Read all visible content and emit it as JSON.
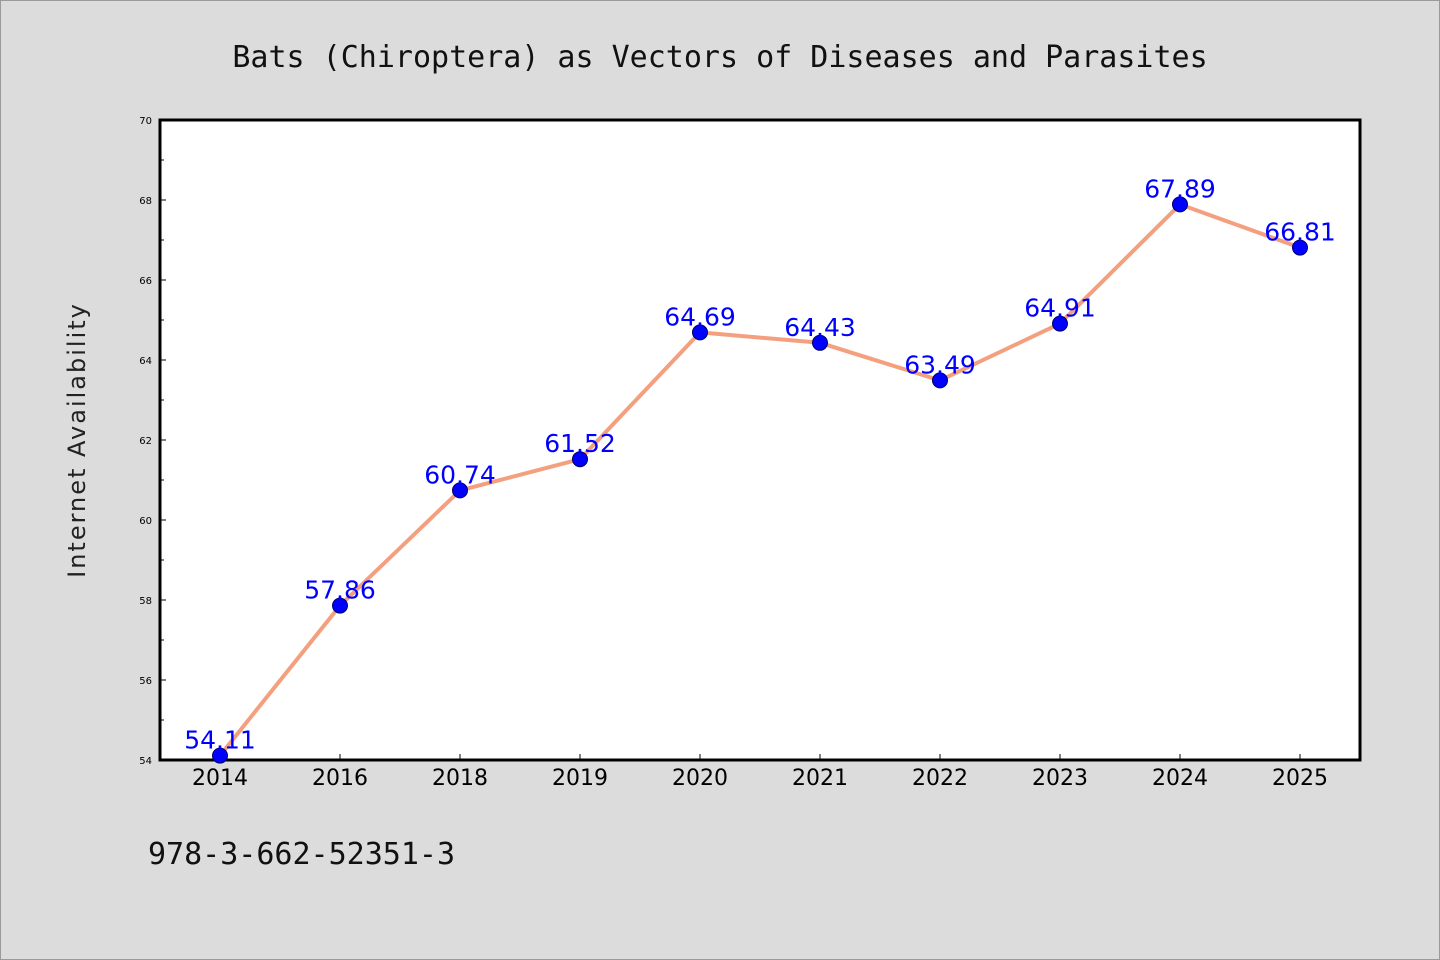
{
  "footer_text": "978-3-662-52351-3",
  "chart_data": {
    "type": "line",
    "title": "Bats (Chiroptera) as Vectors of Diseases and Parasites",
    "xlabel": "",
    "ylabel": "Internet Availability",
    "categories": [
      "2014",
      "2016",
      "2018",
      "2019",
      "2020",
      "2021",
      "2022",
      "2023",
      "2024",
      "2025"
    ],
    "series": [
      {
        "values": [
          54.11,
          57.86,
          60.74,
          61.52,
          64.69,
          64.43,
          63.49,
          64.91,
          67.89,
          66.81
        ],
        "labels": [
          "54.11",
          "57.86",
          "60.74",
          "61.52",
          "64.69",
          "64.43",
          "63.49",
          "64.91",
          "67.89",
          "66.81"
        ]
      }
    ],
    "ylim": [
      54,
      70
    ],
    "yticks": [
      "54",
      "56",
      "58",
      "60",
      "62",
      "64",
      "66",
      "68",
      "70"
    ],
    "grid": false,
    "line_color": "#f4a07f",
    "marker_color": "#0000ff",
    "label_color": "#0000ff",
    "background_color": "#dcdcdc",
    "plot_background_color": "#ffffff"
  }
}
